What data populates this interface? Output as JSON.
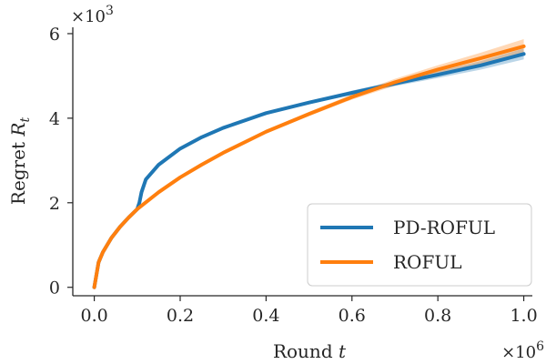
{
  "chart_data": {
    "type": "line",
    "xlabel": "Round t",
    "ylabel": "Regret R_t",
    "x_multiplier": "×10^6",
    "y_multiplier": "×10^3",
    "xlim": [
      -0.05,
      1.02
    ],
    "ylim": [
      -0.2,
      6.15
    ],
    "x_ticks": [
      0.0,
      0.2,
      0.4,
      0.6,
      0.8,
      1.0
    ],
    "x_tick_labels": [
      "0.0",
      "0.2",
      "0.4",
      "0.6",
      "0.8",
      "1.0"
    ],
    "y_ticks": [
      0,
      2,
      4,
      6
    ],
    "y_tick_labels": [
      "0",
      "2",
      "4",
      "6"
    ],
    "grid": false,
    "legend_position": "lower-right",
    "series": [
      {
        "name": "PD-ROFUL",
        "color": "#1f77b4",
        "x": [
          0.0,
          0.01,
          0.02,
          0.04,
          0.06,
          0.08,
          0.1,
          0.105,
          0.11,
          0.12,
          0.15,
          0.2,
          0.25,
          0.3,
          0.4,
          0.5,
          0.6,
          0.7,
          0.8,
          0.9,
          1.0
        ],
        "y": [
          0.0,
          0.59,
          0.83,
          1.17,
          1.43,
          1.65,
          1.85,
          2.0,
          2.25,
          2.55,
          2.9,
          3.28,
          3.55,
          3.77,
          4.12,
          4.37,
          4.6,
          4.82,
          5.03,
          5.25,
          5.52
        ],
        "band": [
          0.0,
          0.0,
          0.0,
          0.0,
          0.0,
          0.0,
          0.0,
          0.01,
          0.01,
          0.01,
          0.02,
          0.02,
          0.02,
          0.03,
          0.03,
          0.04,
          0.05,
          0.06,
          0.08,
          0.1,
          0.13
        ]
      },
      {
        "name": "ROFUL",
        "color": "#ff7f0e",
        "x": [
          0.0,
          0.01,
          0.02,
          0.04,
          0.06,
          0.08,
          0.1,
          0.15,
          0.2,
          0.25,
          0.3,
          0.4,
          0.5,
          0.6,
          0.7,
          0.8,
          0.9,
          1.0
        ],
        "y": [
          0.0,
          0.59,
          0.83,
          1.17,
          1.43,
          1.65,
          1.85,
          2.25,
          2.6,
          2.9,
          3.18,
          3.68,
          4.1,
          4.5,
          4.85,
          5.15,
          5.42,
          5.7
        ],
        "band": [
          0.0,
          0.0,
          0.0,
          0.0,
          0.0,
          0.0,
          0.0,
          0.01,
          0.02,
          0.02,
          0.03,
          0.04,
          0.05,
          0.06,
          0.08,
          0.1,
          0.13,
          0.17
        ]
      }
    ]
  }
}
